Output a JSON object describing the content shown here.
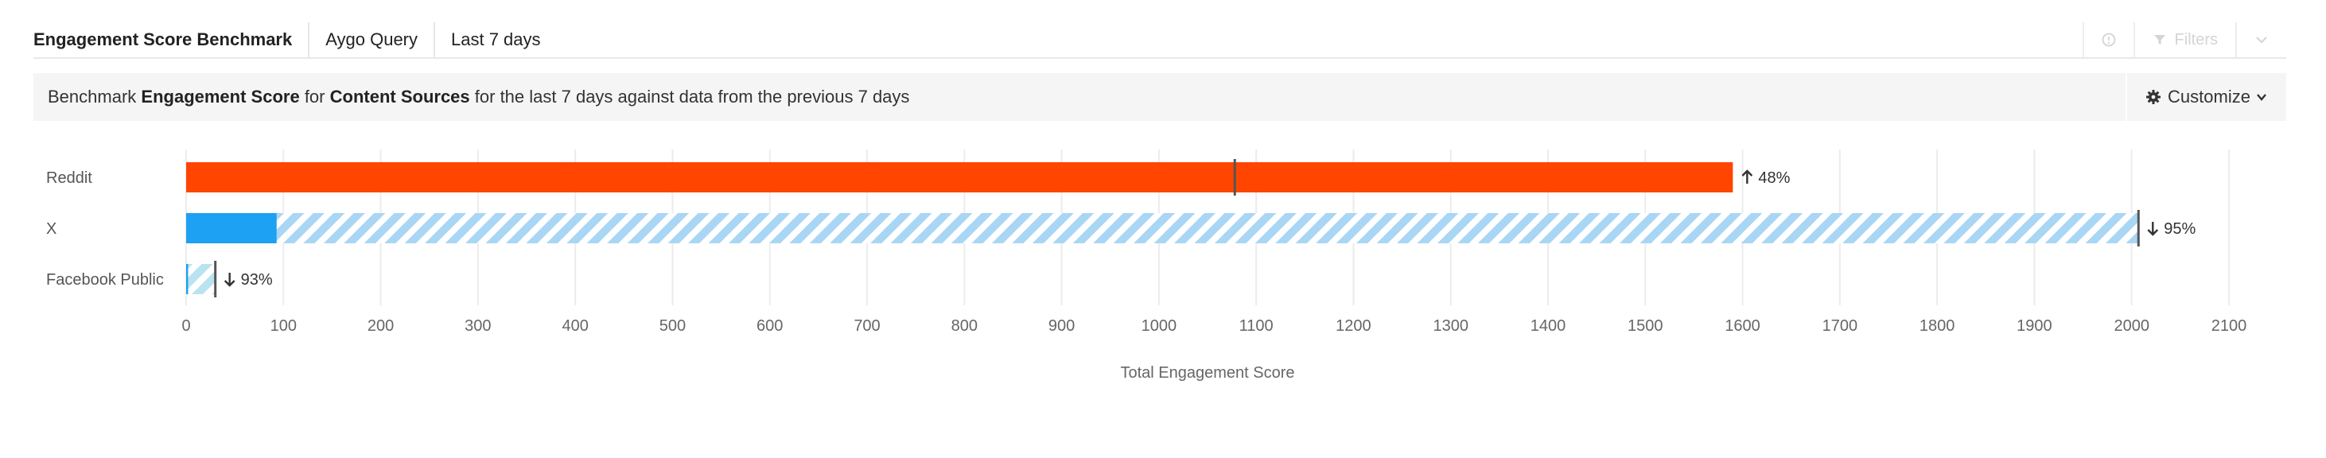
{
  "header": {
    "title": "Engagement Score Benchmark",
    "query": "Aygo Query",
    "range": "Last 7 days",
    "filters_label": "Filters"
  },
  "subbar": {
    "prefix": "Benchmark",
    "metric": "Engagement Score",
    "for": "for",
    "dimension": "Content Sources",
    "suffix": "for the last 7 days against data from the previous 7 days",
    "customize_label": "Customize"
  },
  "icons": {
    "info": "info-circle-icon",
    "filter": "funnel-icon",
    "collapse": "chevron-down-icon",
    "customize": "gear-icon"
  },
  "colors": {
    "reddit": "#ff4500",
    "x": "#1da1f2",
    "x_previous": "#a9d6f5",
    "facebook_previous": "#b9e3ef",
    "benchmark_marker": "#555555",
    "grid": "#ececec"
  },
  "chart_data": {
    "type": "bar",
    "orientation": "horizontal",
    "xlabel": "Total Engagement Score",
    "xlim": [
      0,
      2100
    ],
    "xticks": [
      "0",
      "100",
      "200",
      "300",
      "400",
      "500",
      "600",
      "700",
      "800",
      "900",
      "1000",
      "1100",
      "1200",
      "1300",
      "1400",
      "1500",
      "1600",
      "1700",
      "1800",
      "1900",
      "2000",
      "2100"
    ],
    "grid": true,
    "categories": [
      "Reddit",
      "X",
      "Facebook Public"
    ],
    "current": [
      1590,
      93,
      2
    ],
    "previous": [
      1078,
      2007,
      30
    ],
    "deltas": [
      {
        "dir": "up",
        "text": "48%"
      },
      {
        "dir": "down",
        "text": "95%"
      },
      {
        "dir": "down",
        "text": "93%"
      }
    ]
  }
}
